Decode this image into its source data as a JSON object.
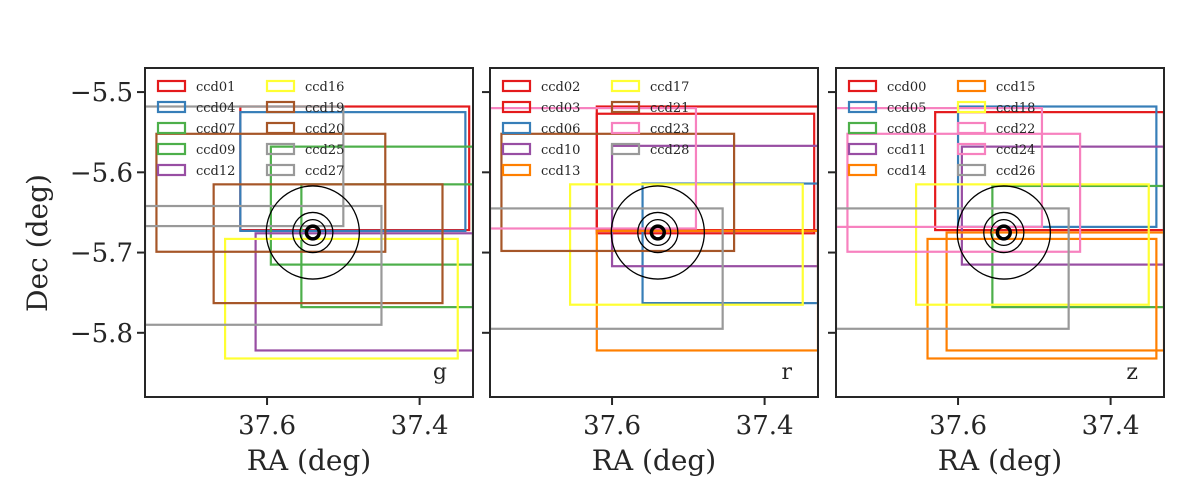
{
  "chart_data": {
    "type": "footprint",
    "ylabel": "Dec (deg)",
    "yticks": [
      "−5.5",
      "−5.6",
      "−5.7",
      "−5.8"
    ],
    "ytick_values": [
      -5.5,
      -5.6,
      -5.7,
      -5.8
    ],
    "xticks": [
      "37.6",
      "37.4"
    ],
    "xtick_values": [
      37.6,
      37.4
    ],
    "xlim": [
      37.76,
      37.33
    ],
    "ylim": [
      -5.88,
      -5.47
    ],
    "grid": false,
    "legend_position": "upper-left",
    "target": {
      "ra": 37.54,
      "dec": -5.675,
      "radii_deg": [
        0.008,
        0.016,
        0.025,
        0.058
      ]
    },
    "colors": {
      "red": "#e41a1c",
      "blue": "#377eb8",
      "green": "#4daf4a",
      "purple": "#984ea3",
      "orange": "#ff7f00",
      "yellow": "#ffff33",
      "brown": "#a65628",
      "pink": "#f781bf",
      "gray": "#999999"
    },
    "panels": [
      {
        "band": "g",
        "xlabel": "RA (deg)",
        "ccds": [
          {
            "name": "ccd01",
            "color": "red",
            "ra": [
              37.635,
              37.335
            ],
            "dec": [
              -5.672,
              -5.518
            ]
          },
          {
            "name": "ccd04",
            "color": "blue",
            "ra": [
              37.635,
              37.34
            ],
            "dec": [
              -5.673,
              -5.525
            ]
          },
          {
            "name": "ccd07",
            "color": "green",
            "ra": [
              37.555,
              37.33
            ],
            "dec": [
              -5.768,
              -5.615
            ]
          },
          {
            "name": "ccd09",
            "color": "green",
            "ra": [
              37.595,
              37.33
            ],
            "dec": [
              -5.715,
              -5.568
            ]
          },
          {
            "name": "ccd12",
            "color": "purple",
            "ra": [
              37.615,
              37.33
            ],
            "dec": [
              -5.822,
              -5.676
            ]
          },
          {
            "name": "ccd16",
            "color": "yellow",
            "ra": [
              37.655,
              37.35
            ],
            "dec": [
              -5.832,
              -5.683
            ]
          },
          {
            "name": "ccd19",
            "color": "brown",
            "ra": [
              37.745,
              37.445
            ],
            "dec": [
              -5.699,
              -5.552
            ]
          },
          {
            "name": "ccd20",
            "color": "brown",
            "ra": [
              37.67,
              37.37
            ],
            "dec": [
              -5.763,
              -5.615
            ]
          },
          {
            "name": "ccd25",
            "color": "gray",
            "ra": [
              37.76,
              37.45
            ],
            "dec": [
              -5.79,
              -5.642
            ]
          },
          {
            "name": "ccd27",
            "color": "gray",
            "ra": [
              37.76,
              37.5
            ],
            "dec": [
              -5.667,
              -5.518
            ]
          }
        ]
      },
      {
        "band": "r",
        "xlabel": "RA (deg)",
        "ccds": [
          {
            "name": "ccd02",
            "color": "red",
            "ra": [
              37.62,
              37.33
            ],
            "dec": [
              -5.672,
              -5.518
            ]
          },
          {
            "name": "ccd03",
            "color": "red",
            "ra": [
              37.62,
              37.335
            ],
            "dec": [
              -5.676,
              -5.527
            ]
          },
          {
            "name": "ccd06",
            "color": "blue",
            "ra": [
              37.56,
              37.33
            ],
            "dec": [
              -5.763,
              -5.614
            ]
          },
          {
            "name": "ccd10",
            "color": "purple",
            "ra": [
              37.6,
              37.33
            ],
            "dec": [
              -5.717,
              -5.567
            ]
          },
          {
            "name": "ccd13",
            "color": "orange",
            "ra": [
              37.62,
              37.33
            ],
            "dec": [
              -5.822,
              -5.673
            ]
          },
          {
            "name": "ccd17",
            "color": "yellow",
            "ra": [
              37.655,
              37.35
            ],
            "dec": [
              -5.765,
              -5.615
            ]
          },
          {
            "name": "ccd21",
            "color": "brown",
            "ra": [
              37.745,
              37.44
            ],
            "dec": [
              -5.698,
              -5.552
            ]
          },
          {
            "name": "ccd23",
            "color": "pink",
            "ra": [
              37.76,
              37.49
            ],
            "dec": [
              -5.67,
              -5.52
            ]
          },
          {
            "name": "ccd28",
            "color": "gray",
            "ra": [
              37.76,
              37.455
            ],
            "dec": [
              -5.795,
              -5.645
            ]
          }
        ]
      },
      {
        "band": "z",
        "xlabel": "RA (deg)",
        "ccds": [
          {
            "name": "ccd00",
            "color": "red",
            "ra": [
              37.63,
              37.33
            ],
            "dec": [
              -5.672,
              -5.525
            ]
          },
          {
            "name": "ccd05",
            "color": "blue",
            "ra": [
              37.6,
              37.34
            ],
            "dec": [
              -5.668,
              -5.518
            ]
          },
          {
            "name": "ccd08",
            "color": "green",
            "ra": [
              37.555,
              37.33
            ],
            "dec": [
              -5.768,
              -5.617
            ]
          },
          {
            "name": "ccd11",
            "color": "purple",
            "ra": [
              37.595,
              37.33
            ],
            "dec": [
              -5.715,
              -5.568
            ]
          },
          {
            "name": "ccd14",
            "color": "orange",
            "ra": [
              37.615,
              37.33
            ],
            "dec": [
              -5.822,
              -5.675
            ]
          },
          {
            "name": "ccd15",
            "color": "orange",
            "ra": [
              37.64,
              37.34
            ],
            "dec": [
              -5.832,
              -5.683
            ]
          },
          {
            "name": "ccd18",
            "color": "yellow",
            "ra": [
              37.655,
              37.35
            ],
            "dec": [
              -5.765,
              -5.615
            ]
          },
          {
            "name": "ccd22",
            "color": "pink",
            "ra": [
              37.745,
              37.44
            ],
            "dec": [
              -5.699,
              -5.552
            ]
          },
          {
            "name": "ccd24",
            "color": "pink",
            "ra": [
              37.76,
              37.49
            ],
            "dec": [
              -5.668,
              -5.52
            ]
          },
          {
            "name": "ccd26",
            "color": "gray",
            "ra": [
              37.76,
              37.455
            ],
            "dec": [
              -5.795,
              -5.645
            ]
          }
        ]
      }
    ]
  }
}
